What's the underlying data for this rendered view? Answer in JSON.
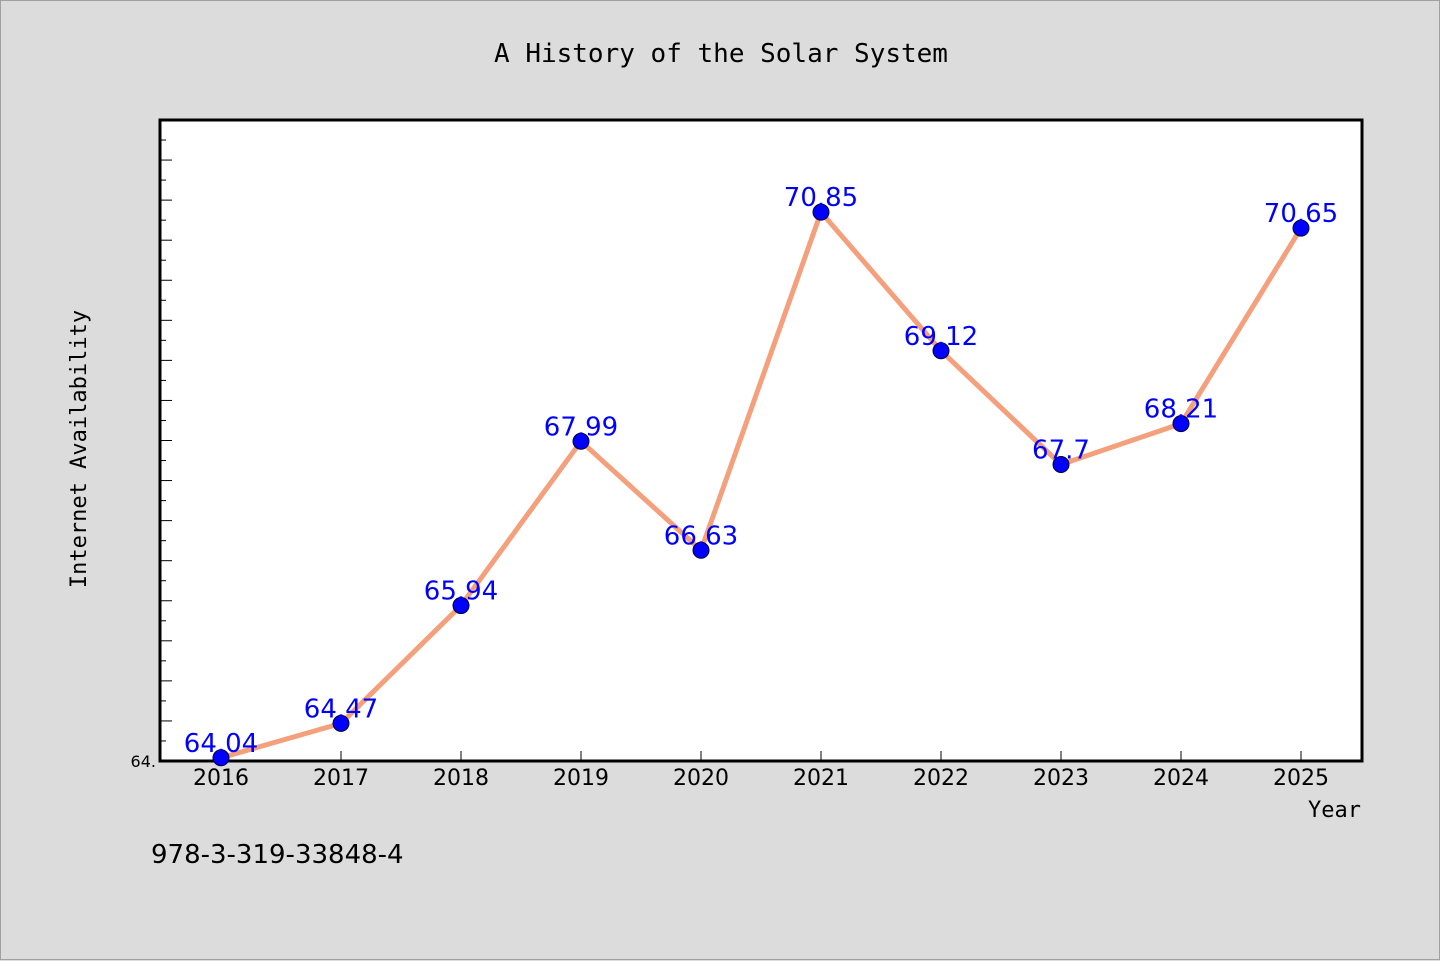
{
  "chart_data": {
    "type": "line",
    "title": "A History of the Solar System",
    "xlabel": "Year",
    "ylabel": "Internet Availability",
    "categories": [
      "2016",
      "2017",
      "2018",
      "2019",
      "2020",
      "2021",
      "2022",
      "2023",
      "2024",
      "2025"
    ],
    "series": [
      {
        "values": [
          64.04,
          64.47,
          65.94,
          67.99,
          66.63,
          70.85,
          69.12,
          67.7,
          68.21,
          70.65
        ],
        "data_labels": [
          "64.04",
          "64.47",
          "65.94",
          "67.99",
          "66.63",
          "70.85",
          "69.12",
          "67.7",
          "68.21",
          "70.65"
        ],
        "line_color": "#f4a07c",
        "marker_color": "#0000ff",
        "label_color": "#0000ff"
      }
    ],
    "ylim": [
      64.0,
      72.0
    ],
    "y_tick_labels": [
      "64."
    ],
    "grid": false,
    "legend": "none"
  },
  "footer": {
    "text": "978-3-319-33848-4"
  },
  "colors": {
    "background": "#dcdcdc",
    "plot_background": "#ffffff",
    "line": "#f4a07c",
    "marker": "#0000ff",
    "data_label": "#0000ff"
  }
}
